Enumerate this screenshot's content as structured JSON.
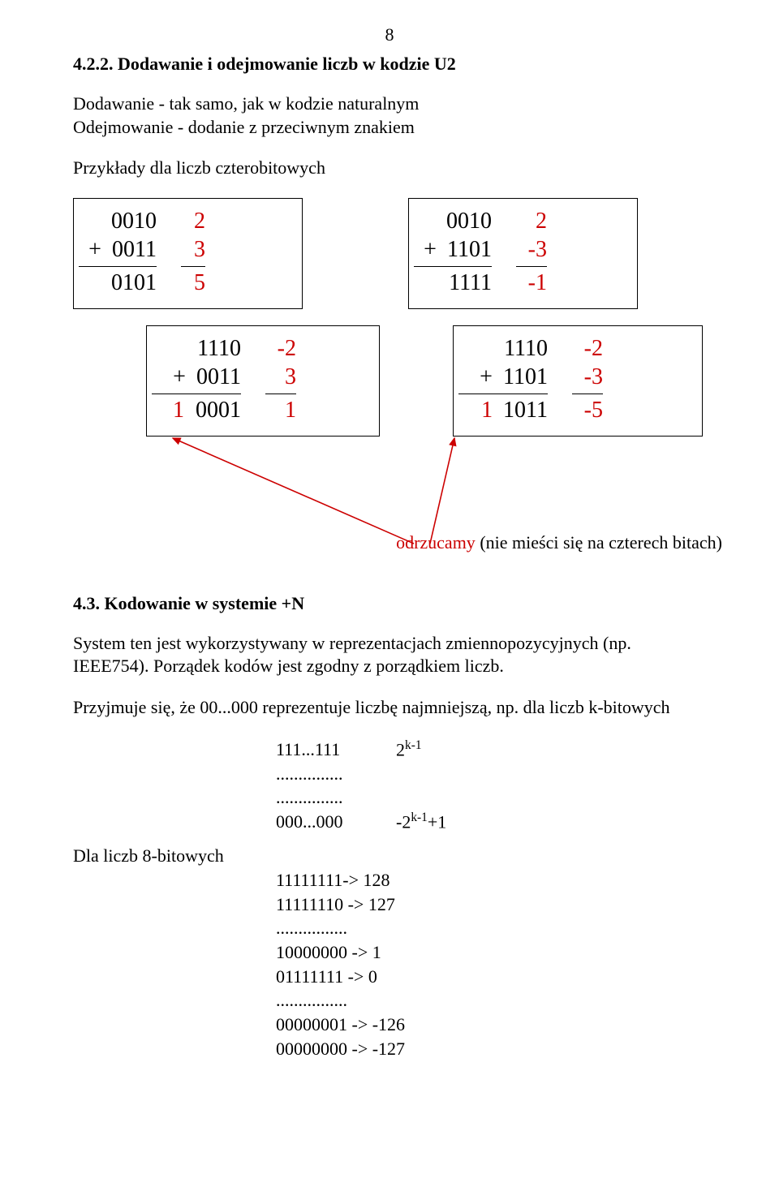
{
  "page_number": "8",
  "heading1": "4.2.2. Dodawanie i odejmowanie liczb w kodzie U2",
  "line1": "Dodawanie - tak samo, jak w kodzie naturalnym",
  "line2": "Odejmowanie - dodanie z przeciwnym znakiem",
  "line3": "Przykłady dla liczb czterobitowych",
  "calc1": {
    "bin": {
      "r1": "0010",
      "r2": "0011",
      "r3": "0101",
      "carry": ""
    },
    "dec": {
      "r1": "2",
      "r2": "3",
      "r3": "5"
    }
  },
  "calc2": {
    "bin": {
      "r1": "0010",
      "r2": "1101",
      "r3": "1111",
      "carry": ""
    },
    "dec": {
      "r1": "2",
      "r2": "-3",
      "r3": "-1"
    }
  },
  "calc3": {
    "bin": {
      "r1": "1110",
      "r2": "0011",
      "r3": "0001",
      "carry": "1"
    },
    "dec": {
      "r1": "-2",
      "r2": "3",
      "r3": "1"
    }
  },
  "calc4": {
    "bin": {
      "r1": "1110",
      "r2": "1101",
      "r3": "1011",
      "carry": "1"
    },
    "dec": {
      "r1": "-2",
      "r2": "-3",
      "r3": "-5"
    }
  },
  "annot_word": "odrzucamy",
  "annot_rest": " (nie mieści się na czterech bitach)",
  "heading2": "4.3. Kodowanie w systemie +N",
  "para1": "System ten jest wykorzystywany w reprezentacjach zmiennopozycyjnych (np. IEEE754). Porządek kodów jest zgodny z porządkiem liczb.",
  "para2": "Przyjmuje się, że 00...000 reprezentuje liczbę najmniejszą, np. dla liczb k-bitowych",
  "tbl": {
    "l1a": "111...111",
    "l1b_html": "2<sup>k-1</sup>",
    "dots": "...............",
    "l3a": "000...000",
    "l3b_html": "-2<sup>k-1</sup>+1"
  },
  "label8": "Dla liczb 8-bitowych",
  "list8": {
    "a": "11111111-> 128",
    "b": "11111110 -> 127",
    "d1": "................",
    "c": "10000000 -> 1",
    "d": "01111111 -> 0",
    "d2": "................",
    "e": "00000001 -> -126",
    "f": "00000000 -> -127"
  },
  "colors": {
    "red": "#cc0000",
    "black": "#000000",
    "bg": "#ffffff"
  }
}
